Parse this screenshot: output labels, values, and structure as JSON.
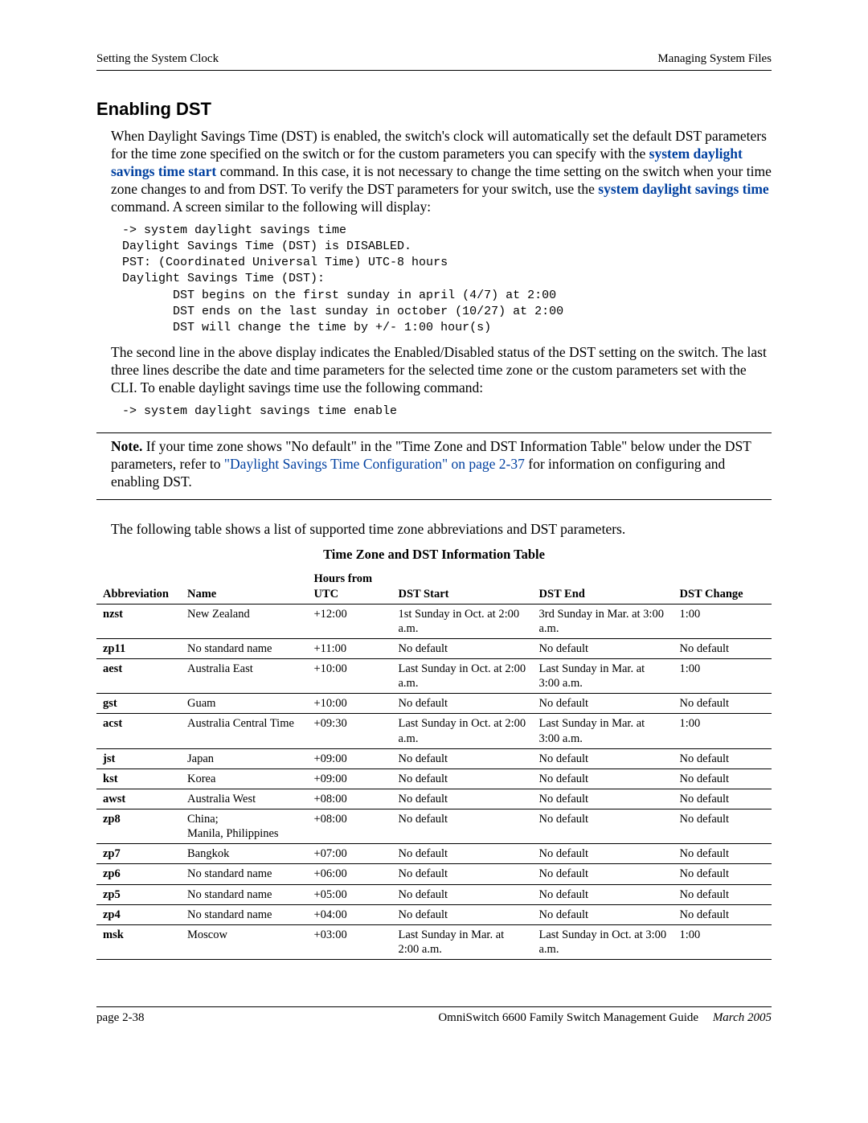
{
  "header": {
    "left": "Setting the System Clock",
    "right": "Managing System Files"
  },
  "section_title": "Enabling DST",
  "para1_a": "When Daylight Savings Time (DST) is enabled, the switch's clock will automatically set the default DST parameters for the time zone specified on the switch or for the custom parameters you can specify with the ",
  "para1_link1": "system daylight savings time start",
  "para1_b": " command. In this case, it is not necessary to change the time setting on the switch when your time zone changes to and from DST. To verify the DST parameters for your switch, use the ",
  "para1_link2": "system daylight savings time",
  "para1_c": " command. A screen similar to the following will display:",
  "code1": "-> system daylight savings time\nDaylight Savings Time (DST) is DISABLED.\nPST: (Coordinated Universal Time) UTC-8 hours\nDaylight Savings Time (DST):\n       DST begins on the first sunday in april (4/7) at 2:00\n       DST ends on the last sunday in october (10/27) at 2:00\n       DST will change the time by +/- 1:00 hour(s)",
  "para2": "The second line in the above display indicates the Enabled/Disabled status of the DST setting on the switch. The last three lines describe the date and time parameters for the selected time zone or the custom parameters set with the CLI. To enable daylight savings time use the following command:",
  "code2": "-> system daylight savings time enable",
  "note_label": "Note.",
  "note_a": " If your time zone shows \"No default\" in the \"Time Zone and DST Information Table\" below under the DST parameters, refer to ",
  "note_link": "\"Daylight Savings Time Configuration\" on page 2-37",
  "note_b": " for information on configuring and enabling DST.",
  "para3": "The following table shows a list of supported time zone abbreviations and DST parameters.",
  "table_title": "Time Zone and DST Information Table",
  "table": {
    "headers": [
      "Abbreviation",
      "Name",
      "Hours from UTC",
      "DST Start",
      "DST End",
      "DST Change"
    ],
    "rows": [
      [
        "nzst",
        "New Zealand",
        "+12:00",
        "1st Sunday in Oct. at 2:00 a.m.",
        "3rd Sunday in Mar. at 3:00 a.m.",
        "1:00"
      ],
      [
        "zp11",
        "No standard name",
        "+11:00",
        "No default",
        "No default",
        "No default"
      ],
      [
        "aest",
        "Australia East",
        "+10:00",
        "Last Sunday in Oct. at 2:00 a.m.",
        "Last Sunday in Mar. at 3:00 a.m.",
        "1:00"
      ],
      [
        "gst",
        "Guam",
        "+10:00",
        "No default",
        "No default",
        "No default"
      ],
      [
        "acst",
        "Australia Central Time",
        "+09:30",
        "Last Sunday in Oct. at 2:00 a.m.",
        "Last Sunday in Mar. at 3:00 a.m.",
        "1:00"
      ],
      [
        "jst",
        "Japan",
        "+09:00",
        "No default",
        "No default",
        "No default"
      ],
      [
        "kst",
        "Korea",
        "+09:00",
        "No default",
        "No default",
        "No default"
      ],
      [
        "awst",
        "Australia West",
        "+08:00",
        "No default",
        "No default",
        "No default"
      ],
      [
        "zp8",
        "China;\nManila, Philippines",
        "+08:00",
        "No default",
        "No default",
        "No default"
      ],
      [
        "zp7",
        "Bangkok",
        "+07:00",
        "No default",
        "No default",
        "No default"
      ],
      [
        "zp6",
        "No standard name",
        "+06:00",
        "No default",
        "No default",
        "No default"
      ],
      [
        "zp5",
        "No standard name",
        "+05:00",
        "No default",
        "No default",
        "No default"
      ],
      [
        "zp4",
        "No standard name",
        "+04:00",
        "No default",
        "No default",
        "No default"
      ],
      [
        "msk",
        "Moscow",
        "+03:00",
        "Last Sunday in Mar. at 2:00 a.m.",
        "Last Sunday in Oct. at 3:00 a.m.",
        "1:00"
      ]
    ]
  },
  "footer": {
    "left": "page 2-38",
    "center": "OmniSwitch 6600 Family Switch Management Guide",
    "date": "March 2005"
  }
}
